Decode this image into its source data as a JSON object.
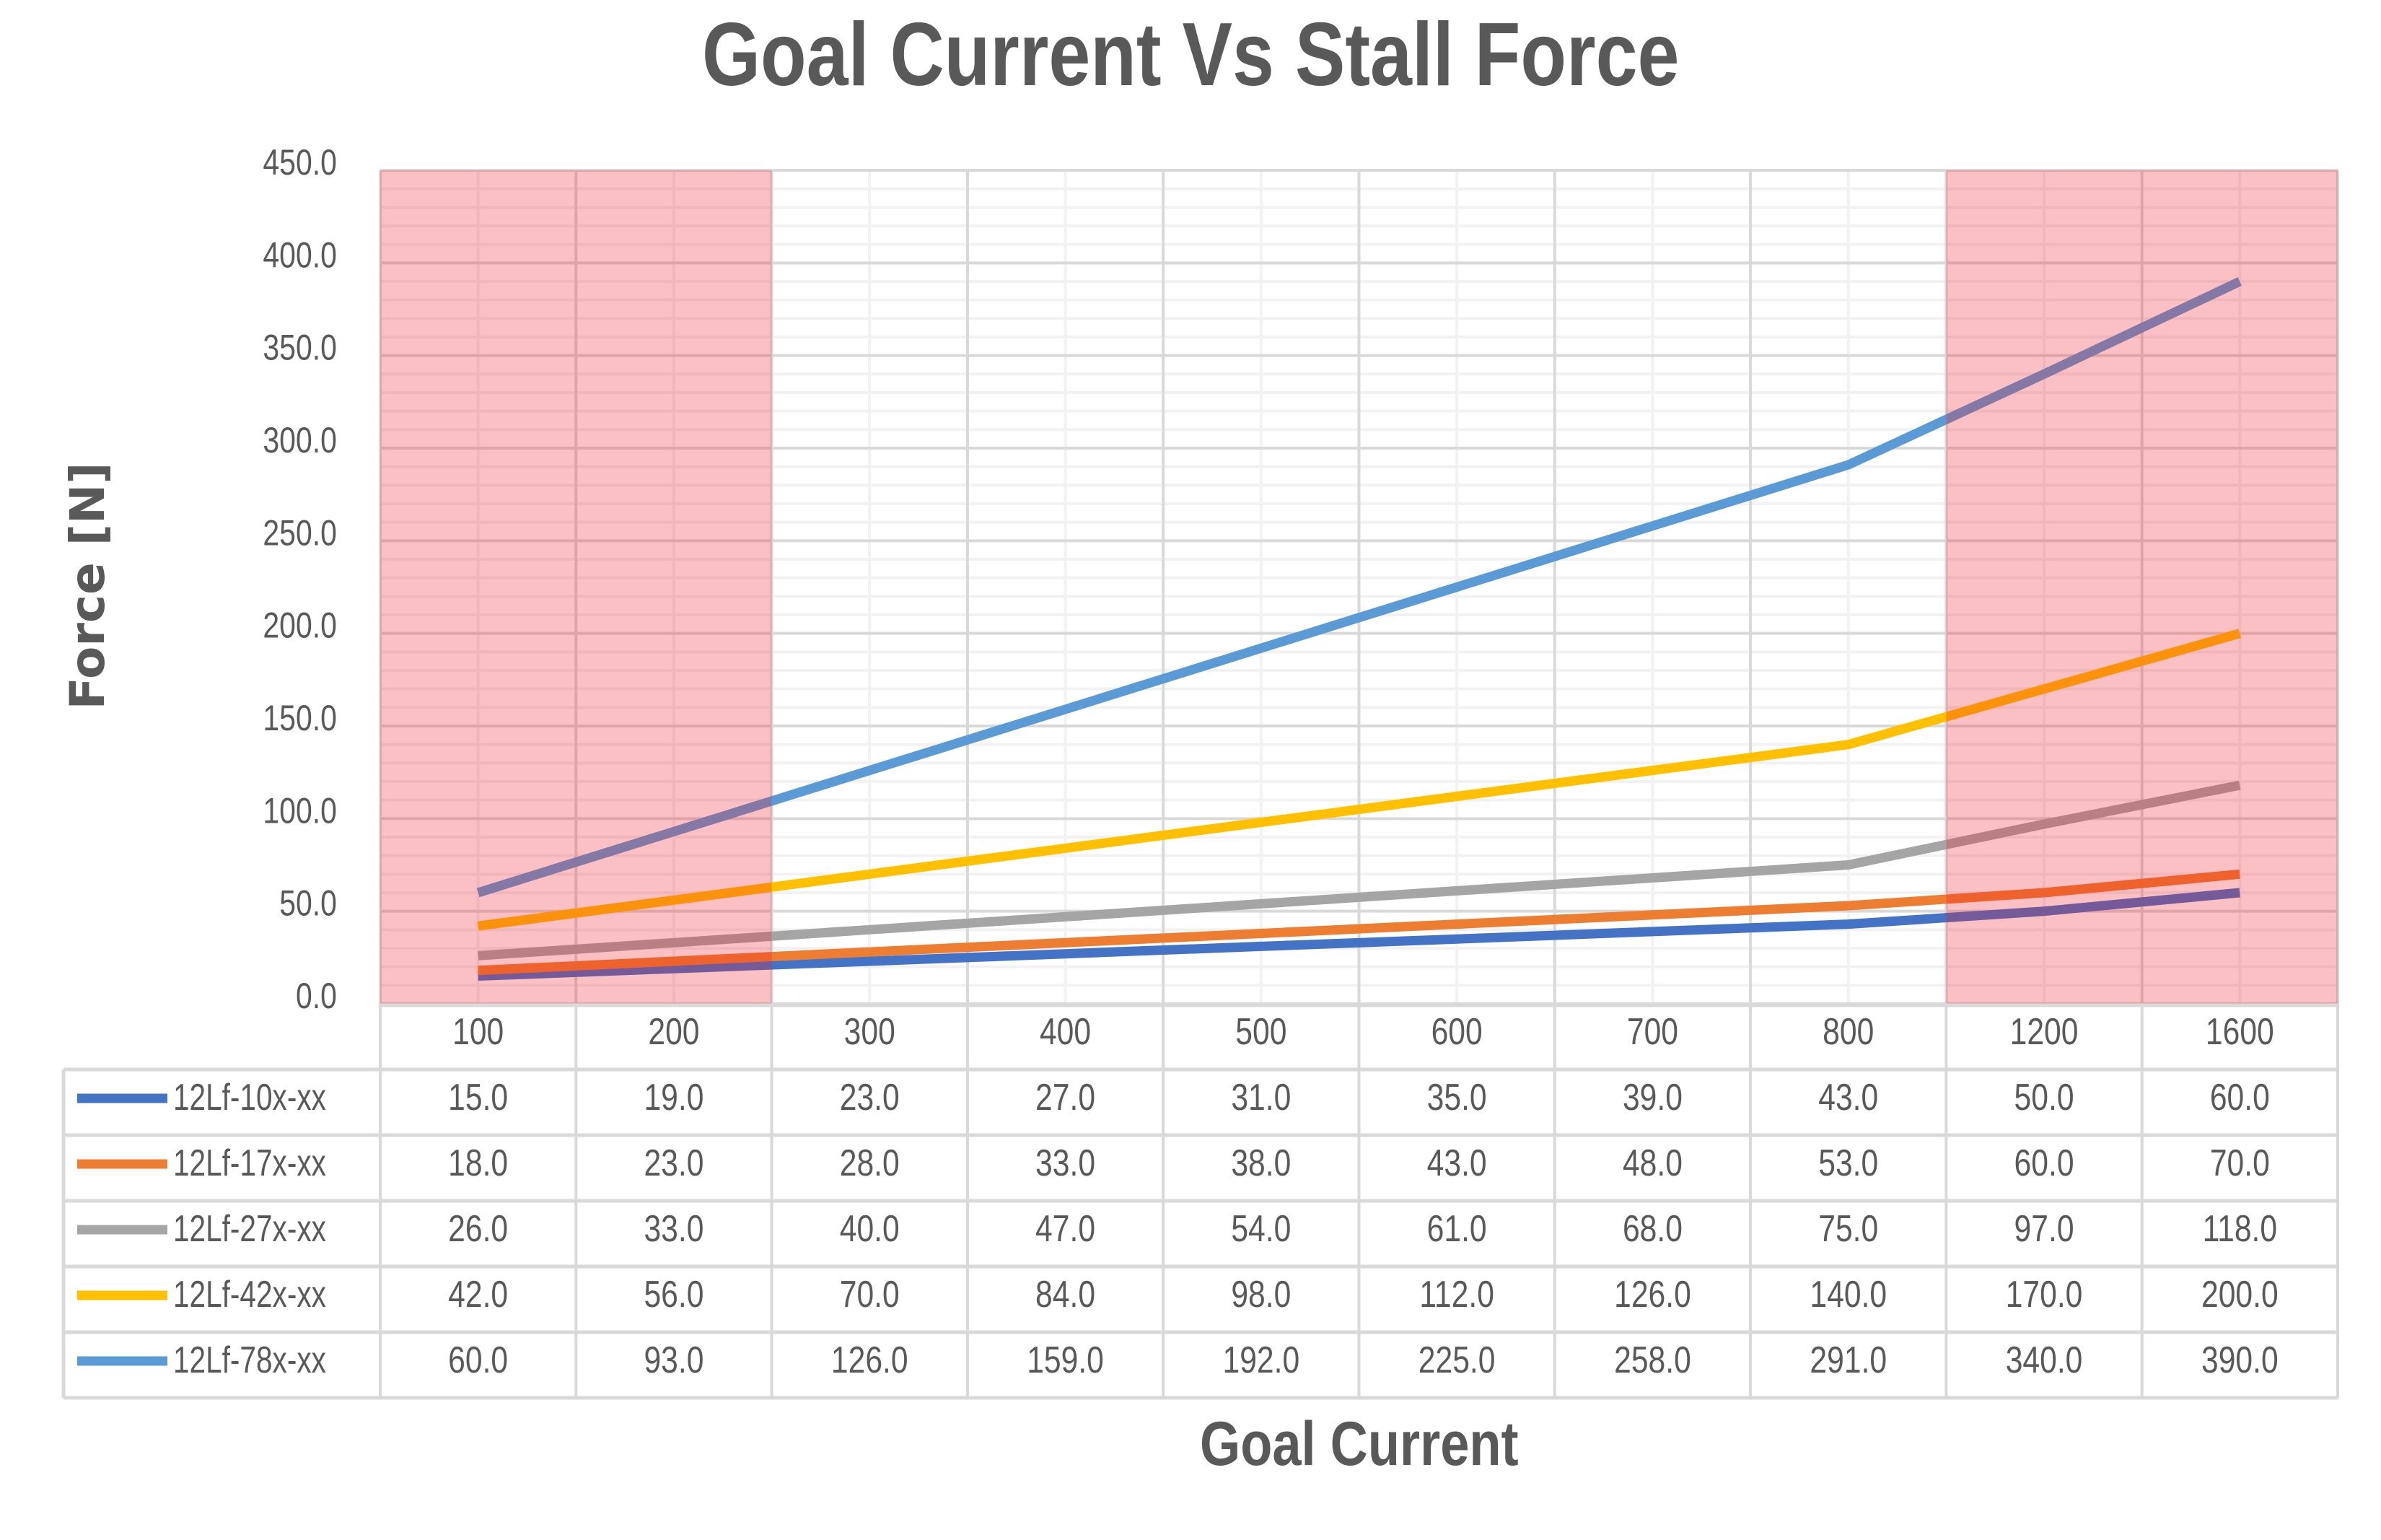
{
  "title": "Goal Current Vs Stall Force",
  "x_axis_label": "Goal Current",
  "y_axis_label": "Force [N]",
  "colors": {
    "text": "#595959",
    "tick_text": "#595959",
    "grid_major": "#D9D9D9",
    "grid_minor": "#F2F2F2",
    "table_border": "#D9D9D9",
    "highlight_overlay": "rgba(240,30,40,0.28)"
  },
  "highlight_regions": [
    {
      "from_category": "100",
      "to_category": "200"
    },
    {
      "from_category": "1200",
      "to_category": "1600"
    }
  ],
  "chart_data": {
    "type": "line",
    "title": "Goal Current Vs Stall Force",
    "xlabel": "Goal Current",
    "ylabel": "Force [N]",
    "categories": [
      "100",
      "200",
      "300",
      "400",
      "500",
      "600",
      "700",
      "800",
      "1200",
      "1600"
    ],
    "ylim": [
      0,
      450
    ],
    "yticks": [
      "0.0",
      "50.0",
      "100.0",
      "150.0",
      "200.0",
      "250.0",
      "300.0",
      "350.0",
      "400.0",
      "450.0"
    ],
    "ytick_values": [
      0,
      50,
      100,
      150,
      200,
      250,
      300,
      350,
      400,
      450
    ],
    "grid": true,
    "legend_position": "data-table",
    "series": [
      {
        "name": "12Lf-10x-xx",
        "color": "#4472C4",
        "values": [
          15.0,
          19.0,
          23.0,
          27.0,
          31.0,
          35.0,
          39.0,
          43.0,
          50.0,
          60.0
        ],
        "labels": [
          "15.0",
          "19.0",
          "23.0",
          "27.0",
          "31.0",
          "35.0",
          "39.0",
          "43.0",
          "50.0",
          "60.0"
        ]
      },
      {
        "name": "12Lf-17x-xx",
        "color": "#ED7D31",
        "values": [
          18.0,
          23.0,
          28.0,
          33.0,
          38.0,
          43.0,
          48.0,
          53.0,
          60.0,
          70.0
        ],
        "labels": [
          "18.0",
          "23.0",
          "28.0",
          "33.0",
          "38.0",
          "43.0",
          "48.0",
          "53.0",
          "60.0",
          "70.0"
        ]
      },
      {
        "name": "12Lf-27x-xx",
        "color": "#A5A5A5",
        "values": [
          26.0,
          33.0,
          40.0,
          47.0,
          54.0,
          61.0,
          68.0,
          75.0,
          97.0,
          118.0
        ],
        "labels": [
          "26.0",
          "33.0",
          "40.0",
          "47.0",
          "54.0",
          "61.0",
          "68.0",
          "75.0",
          "97.0",
          "118.0"
        ]
      },
      {
        "name": "12Lf-42x-xx",
        "color": "#FFC000",
        "values": [
          42.0,
          56.0,
          70.0,
          84.0,
          98.0,
          112.0,
          126.0,
          140.0,
          170.0,
          200.0
        ],
        "labels": [
          "42.0",
          "56.0",
          "70.0",
          "84.0",
          "98.0",
          "112.0",
          "126.0",
          "140.0",
          "170.0",
          "200.0"
        ]
      },
      {
        "name": "12Lf-78x-xx",
        "color": "#5B9BD5",
        "values": [
          60.0,
          93.0,
          126.0,
          159.0,
          192.0,
          225.0,
          258.0,
          291.0,
          340.0,
          390.0
        ],
        "labels": [
          "60.0",
          "93.0",
          "126.0",
          "159.0",
          "192.0",
          "225.0",
          "258.0",
          "291.0",
          "340.0",
          "390.0"
        ]
      }
    ]
  }
}
